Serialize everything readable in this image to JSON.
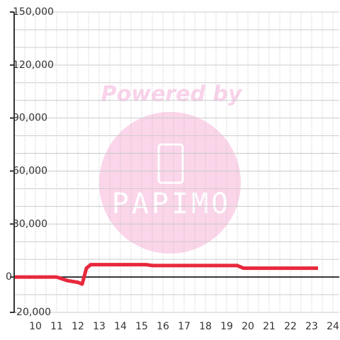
{
  "chart_data": {
    "type": "line",
    "watermark": {
      "text": "Powered by",
      "logo": "PAPIMO"
    },
    "x": [
      9.0,
      11.0,
      11.5,
      12.0,
      12.2,
      12.4,
      12.6,
      15.2,
      15.5,
      19.5,
      19.8,
      23.3
    ],
    "series": [
      {
        "color": "#e8283c",
        "values": [
          0,
          0,
          -2000,
          -3000,
          -4000,
          5000,
          7000,
          7000,
          6500,
          6500,
          5000,
          5000
        ]
      }
    ],
    "xlim": [
      9.0,
      24.3
    ],
    "xticks": [
      10,
      11,
      12,
      13,
      14,
      15,
      16,
      17,
      18,
      19,
      20,
      21,
      22,
      23,
      24
    ],
    "xminorticks": [
      9.5,
      10.5,
      11.5,
      12.5,
      13.5,
      14.5,
      15.5,
      16.5,
      17.5,
      18.5,
      19.5,
      20.5,
      21.5,
      22.5,
      23.5
    ],
    "ylim": [
      -20000,
      150000
    ],
    "yticks": [
      {
        "value": -20000,
        "label": "-20,000"
      },
      0,
      {
        "value": 30000,
        "label": "30,000"
      },
      {
        "value": 60000,
        "label": "60,000"
      },
      {
        "value": 90000,
        "label": "90,000"
      },
      {
        "value": 120000,
        "label": "120,000"
      },
      {
        "value": 150000,
        "label": "150,000"
      }
    ],
    "yminorticks": [
      -10000,
      10000,
      20000,
      40000,
      50000,
      70000,
      80000,
      100000,
      110000,
      130000,
      140000
    ],
    "grid": true
  }
}
